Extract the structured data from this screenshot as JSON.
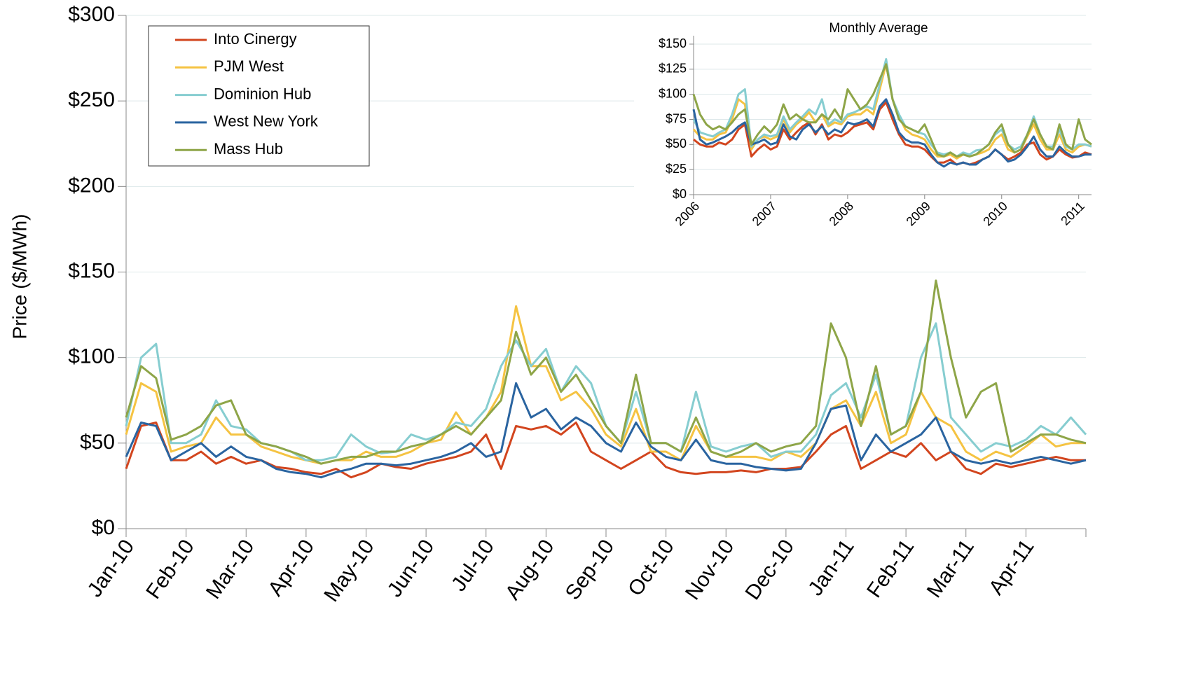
{
  "chart_data": [
    {
      "type": "line",
      "ylabel": "Price ($/MWh)",
      "legend": "upper left",
      "grid": true,
      "categories": [
        "Jan-10",
        null,
        null,
        null,
        "Feb-10",
        null,
        null,
        null,
        "Mar-10",
        null,
        null,
        null,
        "Apr-10",
        null,
        null,
        null,
        "May-10",
        null,
        null,
        null,
        "Jun-10",
        null,
        null,
        null,
        "Jul-10",
        null,
        null,
        null,
        "Aug-10",
        null,
        null,
        null,
        "Sep-10",
        null,
        null,
        null,
        "Oct-10",
        null,
        null,
        null,
        "Nov-10",
        null,
        null,
        null,
        "Dec-10",
        null,
        null,
        null,
        "Jan-11",
        null,
        null,
        null,
        "Feb-11",
        null,
        null,
        null,
        "Mar-11",
        null,
        null,
        null,
        "Apr-11",
        null,
        null,
        null,
        null
      ],
      "ylim": [
        0,
        300
      ],
      "yticks": [
        {
          "value": 0,
          "label": "$0"
        },
        {
          "value": 50,
          "label": "$50"
        },
        {
          "value": 100,
          "label": "$100"
        },
        {
          "value": 150,
          "label": "$150"
        },
        {
          "value": 200,
          "label": "$200"
        },
        {
          "value": 250,
          "label": "$250"
        },
        {
          "value": 300,
          "label": "$300"
        }
      ],
      "series": [
        {
          "name": "Into Cinergy",
          "color": "#d2451e",
          "values": [
            35,
            60,
            62,
            40,
            40,
            45,
            38,
            42,
            38,
            40,
            36,
            35,
            33,
            32,
            35,
            30,
            33,
            38,
            36,
            35,
            38,
            40,
            42,
            45,
            55,
            35,
            60,
            58,
            60,
            55,
            62,
            45,
            40,
            35,
            40,
            45,
            36,
            33,
            32,
            33,
            33,
            34,
            33,
            35,
            35,
            36,
            45,
            55,
            60,
            35,
            40,
            45,
            42,
            50,
            40,
            45,
            35,
            32,
            38,
            36,
            38,
            40,
            42,
            40,
            40
          ]
        },
        {
          "name": "PJM West",
          "color": "#f5c342",
          "values": [
            55,
            85,
            80,
            45,
            48,
            50,
            65,
            55,
            55,
            48,
            45,
            42,
            40,
            38,
            40,
            40,
            45,
            42,
            42,
            45,
            50,
            52,
            68,
            55,
            65,
            80,
            130,
            95,
            95,
            75,
            80,
            70,
            55,
            48,
            70,
            45,
            45,
            40,
            60,
            45,
            42,
            42,
            42,
            40,
            45,
            42,
            50,
            70,
            75,
            60,
            80,
            50,
            55,
            80,
            65,
            60,
            45,
            40,
            45,
            42,
            48,
            55,
            48,
            50,
            50
          ]
        },
        {
          "name": "Dominion Hub",
          "color": "#86cdd0",
          "values": [
            60,
            100,
            108,
            50,
            50,
            55,
            75,
            60,
            58,
            50,
            48,
            45,
            40,
            40,
            42,
            55,
            48,
            44,
            45,
            55,
            52,
            55,
            62,
            60,
            70,
            95,
            110,
            95,
            105,
            80,
            95,
            85,
            60,
            50,
            80,
            50,
            50,
            45,
            80,
            48,
            45,
            48,
            50,
            42,
            45,
            45,
            55,
            78,
            85,
            65,
            90,
            55,
            60,
            100,
            120,
            65,
            55,
            45,
            50,
            48,
            52,
            60,
            55,
            65,
            55
          ]
        },
        {
          "name": "West New York",
          "color": "#2a64a0",
          "values": [
            42,
            62,
            60,
            40,
            45,
            50,
            42,
            48,
            42,
            40,
            35,
            33,
            32,
            30,
            33,
            35,
            38,
            38,
            37,
            38,
            40,
            42,
            45,
            50,
            42,
            45,
            85,
            65,
            70,
            58,
            65,
            60,
            50,
            45,
            62,
            48,
            42,
            40,
            52,
            40,
            38,
            38,
            36,
            35,
            34,
            35,
            50,
            70,
            72,
            40,
            55,
            45,
            50,
            55,
            65,
            45,
            40,
            38,
            40,
            38,
            40,
            42,
            40,
            38,
            40
          ]
        },
        {
          "name": "Mass Hub",
          "color": "#8ea548",
          "values": [
            65,
            95,
            88,
            52,
            55,
            60,
            72,
            75,
            55,
            50,
            48,
            45,
            42,
            38,
            40,
            42,
            42,
            45,
            45,
            48,
            50,
            55,
            60,
            55,
            65,
            75,
            115,
            90,
            100,
            80,
            90,
            75,
            60,
            50,
            90,
            50,
            50,
            45,
            65,
            45,
            42,
            45,
            50,
            45,
            48,
            50,
            60,
            120,
            100,
            60,
            95,
            55,
            60,
            80,
            145,
            100,
            65,
            80,
            85,
            45,
            50,
            55,
            55,
            52,
            50
          ]
        }
      ]
    },
    {
      "type": "line",
      "title": "Monthly Average",
      "grid": true,
      "categories": [
        "2006",
        null,
        null,
        null,
        null,
        null,
        null,
        null,
        null,
        null,
        null,
        null,
        "2007",
        null,
        null,
        null,
        null,
        null,
        null,
        null,
        null,
        null,
        null,
        null,
        "2008",
        null,
        null,
        null,
        null,
        null,
        null,
        null,
        null,
        null,
        null,
        null,
        "2009",
        null,
        null,
        null,
        null,
        null,
        null,
        null,
        null,
        null,
        null,
        null,
        "2010",
        null,
        null,
        null,
        null,
        null,
        null,
        null,
        null,
        null,
        null,
        null,
        "2011",
        null,
        null
      ],
      "ylim": [
        0,
        150
      ],
      "yticks": [
        {
          "value": 0,
          "label": "$0"
        },
        {
          "value": 25,
          "label": "$25"
        },
        {
          "value": 50,
          "label": "$50"
        },
        {
          "value": 75,
          "label": "$75"
        },
        {
          "value": 100,
          "label": "$100"
        },
        {
          "value": 125,
          "label": "$125"
        },
        {
          "value": 150,
          "label": "$150"
        }
      ],
      "series": [
        {
          "color": "#d2451e",
          "values": [
            55,
            50,
            48,
            48,
            52,
            50,
            55,
            65,
            70,
            38,
            45,
            50,
            45,
            48,
            65,
            55,
            62,
            68,
            72,
            60,
            70,
            55,
            60,
            58,
            62,
            68,
            70,
            72,
            65,
            85,
            92,
            75,
            60,
            50,
            48,
            48,
            45,
            38,
            32,
            32,
            35,
            30,
            32,
            30,
            32,
            35,
            38,
            45,
            40,
            35,
            38,
            42,
            50,
            52,
            40,
            35,
            38,
            45,
            40,
            37,
            38,
            42,
            40
          ]
        },
        {
          "color": "#f5c342",
          "values": [
            65,
            58,
            55,
            55,
            60,
            62,
            75,
            95,
            90,
            45,
            55,
            58,
            55,
            58,
            75,
            62,
            70,
            75,
            82,
            72,
            80,
            68,
            72,
            70,
            78,
            80,
            80,
            85,
            80,
            105,
            130,
            95,
            78,
            65,
            60,
            58,
            55,
            45,
            38,
            38,
            40,
            36,
            40,
            38,
            40,
            42,
            45,
            55,
            60,
            45,
            42,
            45,
            58,
            70,
            55,
            45,
            45,
            60,
            45,
            42,
            48,
            50,
            48
          ]
        },
        {
          "color": "#86cdd0",
          "values": [
            75,
            62,
            60,
            58,
            62,
            65,
            80,
            100,
            105,
            48,
            55,
            60,
            58,
            60,
            78,
            65,
            72,
            78,
            85,
            80,
            95,
            70,
            75,
            72,
            80,
            82,
            85,
            88,
            85,
            110,
            135,
            95,
            80,
            68,
            65,
            62,
            60,
            50,
            42,
            40,
            42,
            38,
            42,
            40,
            44,
            45,
            50,
            60,
            65,
            50,
            45,
            48,
            60,
            78,
            60,
            48,
            48,
            65,
            48,
            45,
            50,
            50,
            48
          ]
        },
        {
          "color": "#2a64a0",
          "values": [
            85,
            55,
            50,
            52,
            55,
            58,
            62,
            68,
            72,
            50,
            52,
            55,
            50,
            52,
            70,
            58,
            55,
            65,
            70,
            62,
            68,
            60,
            65,
            62,
            72,
            70,
            72,
            75,
            68,
            88,
            95,
            80,
            62,
            55,
            52,
            52,
            50,
            40,
            32,
            28,
            32,
            30,
            32,
            30,
            30,
            35,
            38,
            45,
            40,
            33,
            35,
            40,
            48,
            58,
            45,
            38,
            38,
            48,
            42,
            38,
            38,
            40,
            40
          ]
        },
        {
          "color": "#8ea548",
          "values": [
            100,
            80,
            70,
            65,
            68,
            65,
            72,
            80,
            85,
            50,
            60,
            68,
            62,
            70,
            90,
            75,
            80,
            75,
            72,
            72,
            80,
            75,
            85,
            75,
            105,
            95,
            85,
            90,
            100,
            115,
            130,
            95,
            75,
            68,
            65,
            62,
            70,
            55,
            40,
            38,
            42,
            38,
            40,
            38,
            40,
            45,
            50,
            62,
            70,
            50,
            42,
            45,
            60,
            75,
            60,
            48,
            45,
            70,
            50,
            45,
            75,
            55,
            50
          ]
        }
      ]
    }
  ]
}
